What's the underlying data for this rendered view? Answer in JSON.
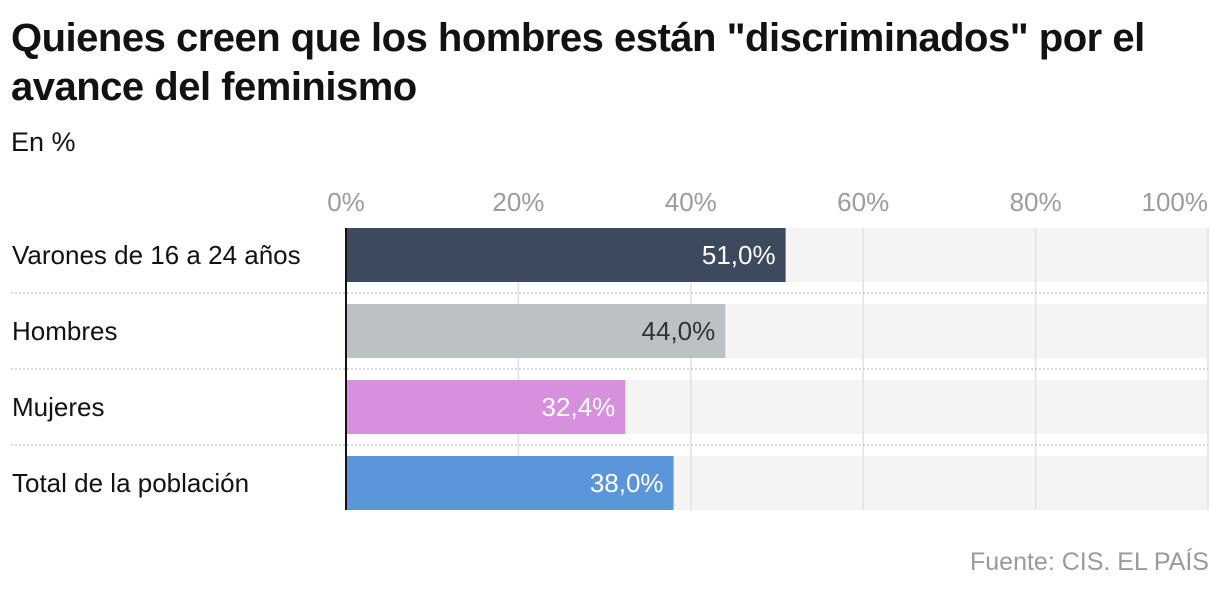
{
  "title": "Quienes creen que los hombres están \"discriminados\" por el avance del feminismo",
  "subtitle": "En %",
  "source": "Fuente: CIS. EL PAÍS",
  "chart_data": {
    "type": "bar",
    "orientation": "horizontal",
    "categories": [
      "Varones de 16 a 24 años",
      "Hombres",
      "Mujeres",
      "Total de la población"
    ],
    "values": [
      51.0,
      44.0,
      32.4,
      38.0
    ],
    "value_labels": [
      "51,0%",
      "44,0%",
      "32,4%",
      "38,0%"
    ],
    "bar_colors": [
      "#3d4a5e",
      "#bdc0c4",
      "#d690de",
      "#5b96da"
    ],
    "label_colors": [
      "#ffffff",
      "#333333",
      "#ffffff",
      "#ffffff"
    ],
    "track_color": "#f4f4f4",
    "xlim": [
      0,
      100
    ],
    "xticks": [
      0,
      20,
      40,
      60,
      80,
      100
    ],
    "xtick_labels": [
      "0%",
      "20%",
      "40%",
      "60%",
      "80%",
      "100%"
    ],
    "xaxis_position": "top",
    "grid": true
  }
}
